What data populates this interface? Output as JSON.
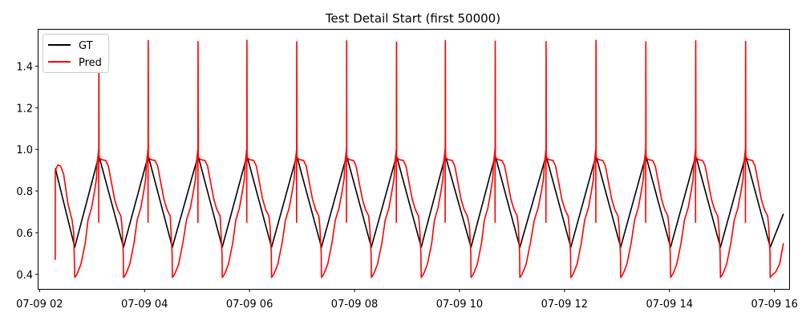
{
  "chart_data": {
    "type": "line",
    "title": "Test Detail Start (first 50000)",
    "xlabel": "",
    "ylabel": "",
    "x_unit": "hours (2023-07-09 local time)",
    "xlim": [
      1.98,
      16.28
    ],
    "ylim": [
      0.33,
      1.575
    ],
    "grid": false,
    "legend_placement": "top-left",
    "x_ticks": [
      {
        "value": 2,
        "label": "07-09 02"
      },
      {
        "value": 4,
        "label": "07-09 04"
      },
      {
        "value": 6,
        "label": "07-09 06"
      },
      {
        "value": 8,
        "label": "07-09 08"
      },
      {
        "value": 10,
        "label": "07-09 10"
      },
      {
        "value": 12,
        "label": "07-09 12"
      },
      {
        "value": 14,
        "label": "07-09 14"
      },
      {
        "value": 16,
        "label": "07-09 16"
      }
    ],
    "y_ticks": [
      {
        "value": 0.4,
        "label": "0.4"
      },
      {
        "value": 0.6,
        "label": "0.6"
      },
      {
        "value": 0.8,
        "label": "0.8"
      },
      {
        "value": 1.0,
        "label": "1.0"
      },
      {
        "value": 1.2,
        "label": "1.2"
      },
      {
        "value": 1.4,
        "label": "1.4"
      }
    ],
    "series": [
      {
        "name": "GT",
        "color": "#000000",
        "x": [
          2.3,
          2.67,
          3.13,
          3.6,
          4.07,
          4.53,
          5.02,
          5.48,
          5.95,
          6.42,
          6.9,
          7.37,
          7.85,
          8.32,
          8.8,
          9.27,
          9.73,
          10.22,
          10.68,
          11.15,
          11.65,
          12.12,
          12.6,
          13.07,
          13.55,
          14.02,
          14.5,
          14.97,
          15.45,
          15.92,
          16.17
        ],
        "values": [
          0.91,
          0.53,
          0.97,
          0.53,
          0.97,
          0.53,
          0.97,
          0.53,
          0.97,
          0.53,
          0.97,
          0.53,
          0.97,
          0.53,
          0.97,
          0.53,
          0.97,
          0.53,
          0.97,
          0.53,
          0.97,
          0.53,
          0.97,
          0.53,
          0.97,
          0.53,
          0.97,
          0.53,
          0.97,
          0.53,
          0.69
        ]
      },
      {
        "name": "Pred",
        "color": "#ff0000",
        "cycle_starts": [
          2.67,
          3.6,
          4.53,
          5.48,
          6.42,
          7.37,
          8.32,
          9.27,
          10.22,
          11.15,
          12.12,
          13.07,
          14.02,
          14.97,
          15.92
        ],
        "cycle_peaks": [
          3.13,
          4.07,
          5.02,
          5.95,
          6.9,
          7.85,
          8.8,
          9.73,
          10.68,
          11.65,
          12.6,
          13.55,
          14.5,
          15.45
        ],
        "spike_peaks": [
          1.52,
          1.52,
          1.52,
          1.52,
          1.52,
          1.52,
          1.52,
          1.52,
          1.52,
          1.52,
          1.52,
          1.52,
          1.52,
          1.52
        ],
        "spike_lows": [
          0.65,
          0.65,
          0.65,
          0.65,
          0.65,
          0.65,
          0.65,
          0.65,
          0.65,
          0.65,
          0.65,
          0.65,
          0.65,
          0.65
        ],
        "start_value": 0.47,
        "end_value": 0.55,
        "min_value": 0.38,
        "plateau_value": 0.95
      }
    ]
  }
}
